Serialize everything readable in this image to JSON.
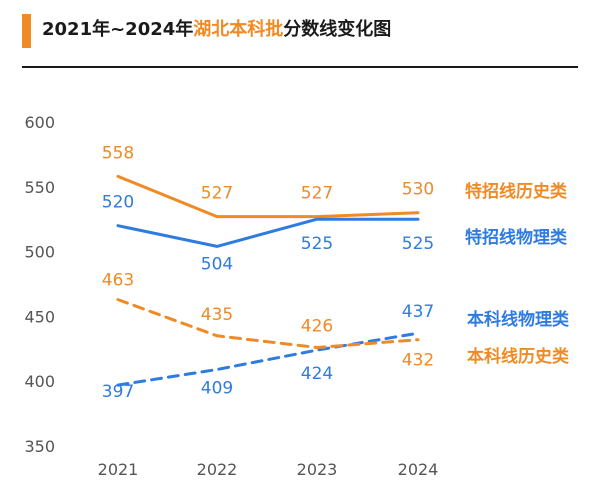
{
  "header": {
    "title_prefix": "2021年~2024年",
    "title_highlight": "湖北本科批",
    "title_suffix": "分数线变化图"
  },
  "colors": {
    "orange": "#f08a24",
    "blue": "#2f7be0",
    "axis_text": "#555555"
  },
  "chart_data": {
    "type": "line",
    "categories": [
      "2021",
      "2022",
      "2023",
      "2024"
    ],
    "ylim": [
      350,
      600
    ],
    "yticks": [
      350,
      400,
      450,
      500,
      550,
      600
    ],
    "grid": false,
    "series": [
      {
        "name": "特招线历史类",
        "values": [
          558,
          527,
          527,
          530
        ],
        "color": "#f08a24",
        "dashed": false
      },
      {
        "name": "特招线物理类",
        "values": [
          520,
          504,
          525,
          525
        ],
        "color": "#2f7be0",
        "dashed": false
      },
      {
        "name": "本科线物理类",
        "values": [
          397,
          409,
          424,
          437
        ],
        "color": "#2f7be0",
        "dashed": true
      },
      {
        "name": "本科线历史类",
        "values": [
          463,
          435,
          426,
          432
        ],
        "color": "#f08a24",
        "dashed": true
      }
    ]
  }
}
